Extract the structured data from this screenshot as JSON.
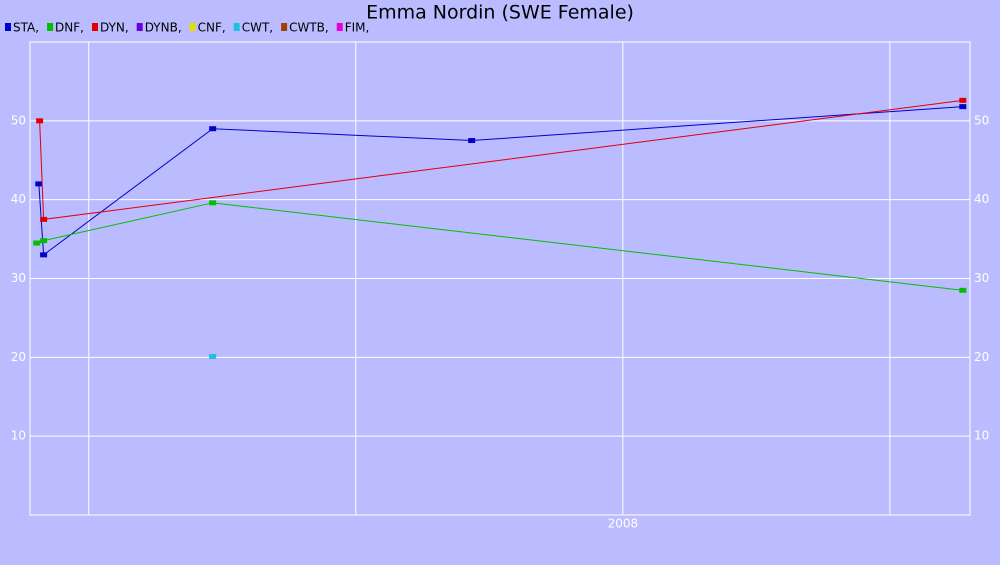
{
  "chart_data": {
    "type": "line",
    "title": "Emma Nordin (SWE Female)",
    "xlim": [
      2005.78,
      2009.3
    ],
    "ylim": [
      0,
      60
    ],
    "xticks": [
      {
        "value": 2006,
        "label": null
      },
      {
        "value": 2007,
        "label": null
      },
      2008,
      {
        "value": 2009,
        "label": null
      }
    ],
    "yticks": [
      10,
      20,
      30,
      40,
      50
    ],
    "grid": true,
    "series": [
      {
        "name": "STA,",
        "color": "#0000cc",
        "x": [
          2005.813,
          2005.831,
          2006.464,
          2007.434,
          2009.273
        ],
        "values": [
          42,
          33,
          49,
          47.5,
          51.8
        ]
      },
      {
        "name": "DNF,",
        "color": "#00c000",
        "x": [
          2005.805,
          2005.831,
          2006.464,
          2009.273
        ],
        "values": [
          34.5,
          34.8,
          39.6,
          28.5
        ]
      },
      {
        "name": "DYN,",
        "color": "#e00000",
        "x": [
          2005.816,
          2005.831,
          2009.273
        ],
        "values": [
          50,
          37.5,
          52.6
        ]
      },
      {
        "name": "DYNB,",
        "color": "#6a00e0",
        "x": [],
        "values": []
      },
      {
        "name": "CNF,",
        "color": "#e0e000",
        "x": [],
        "values": []
      },
      {
        "name": "CWT,",
        "color": "#20c0e0",
        "x": [
          2006.464
        ],
        "values": [
          20.1
        ]
      },
      {
        "name": "CWTB,",
        "color": "#a04000",
        "x": [],
        "values": []
      },
      {
        "name": "FIM,",
        "color": "#e000e0",
        "x": [],
        "values": []
      }
    ]
  }
}
